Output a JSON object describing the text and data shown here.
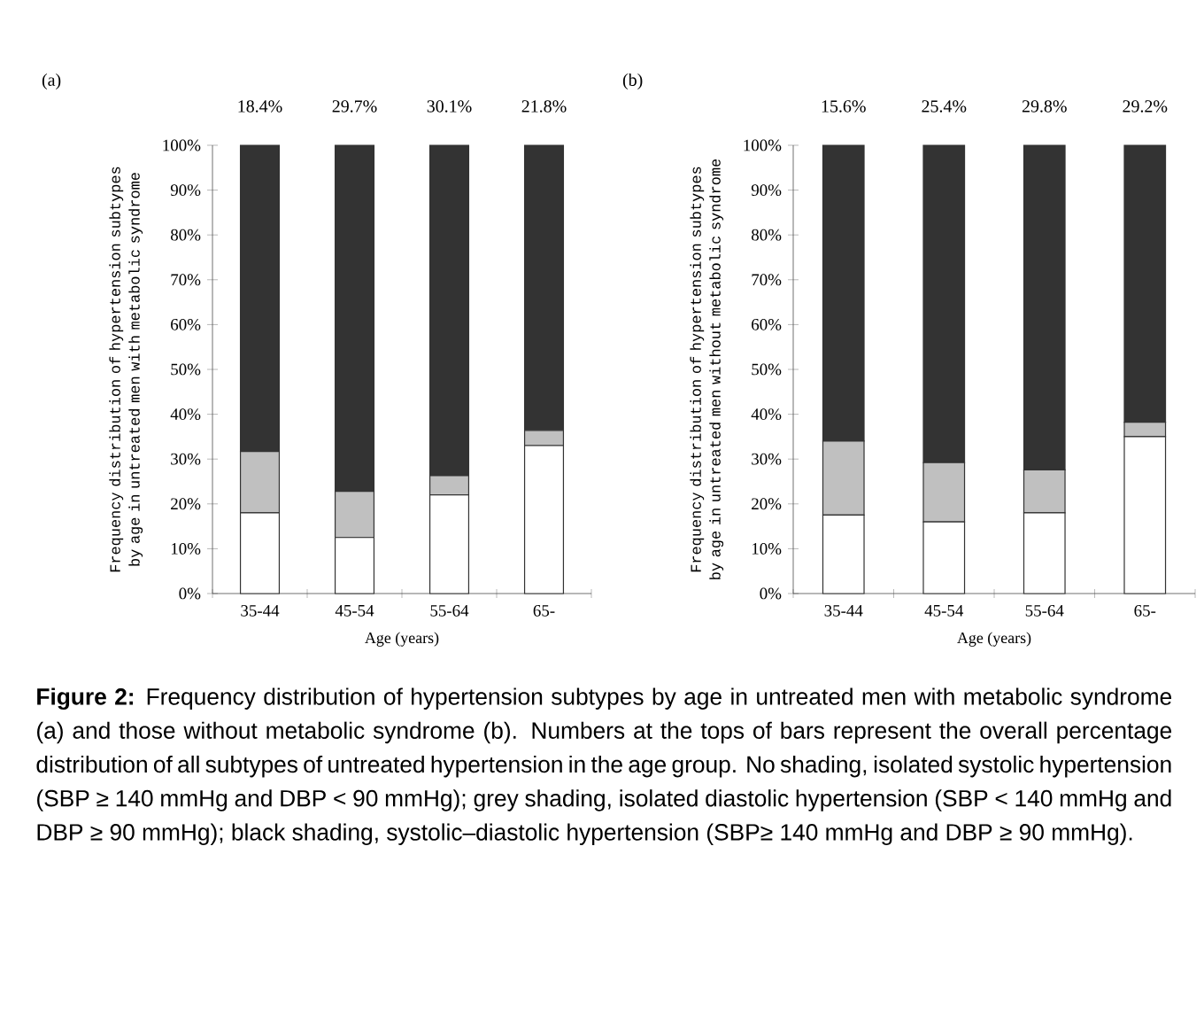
{
  "chart_data": [
    {
      "type": "bar",
      "stacked": true,
      "title": "(a)",
      "xlabel": "Age (years)",
      "ylabel": "Frequency distribution of hypertension subtypes by age in untreated men with metabolic syndrome",
      "categories": [
        "35-44",
        "45-54",
        "55-64",
        "65-"
      ],
      "series": [
        {
          "color": "#ffffff",
          "values": [
            18,
            12.5,
            22,
            33
          ]
        },
        {
          "color": "#c0c0c0",
          "values": [
            13.7,
            10.3,
            4.3,
            3.4
          ]
        },
        {
          "color": "#333333",
          "values": [
            68.3,
            77.2,
            73.7,
            63.6
          ]
        }
      ],
      "ylim": [
        0,
        100
      ],
      "yticks": [
        {
          "value": 0,
          "label": "0%"
        },
        {
          "value": 10,
          "label": "10%"
        },
        {
          "value": 20,
          "label": "20%"
        },
        {
          "value": 30,
          "label": "30%"
        },
        {
          "value": 40,
          "label": "40%"
        },
        {
          "value": 50,
          "label": "50%"
        },
        {
          "value": 60,
          "label": "60%"
        },
        {
          "value": 70,
          "label": "70%"
        },
        {
          "value": 80,
          "label": "80%"
        },
        {
          "value": 90,
          "label": "90%"
        },
        {
          "value": 100,
          "label": "100%"
        }
      ],
      "annotations": [
        "18.4%",
        "29.7%",
        "30.1%",
        "21.8%"
      ]
    },
    {
      "type": "bar",
      "stacked": true,
      "title": "(b)",
      "xlabel": "Age (years)",
      "ylabel": "Frequency distribution of hypertension subtypes by age in untreated men without metabolic syndrome",
      "categories": [
        "35-44",
        "45-54",
        "55-64",
        "65-"
      ],
      "series": [
        {
          "color": "#ffffff",
          "values": [
            17.5,
            16,
            18,
            35
          ]
        },
        {
          "color": "#c0c0c0",
          "values": [
            16.5,
            13.2,
            9.6,
            3.2
          ]
        },
        {
          "color": "#333333",
          "values": [
            66,
            70.8,
            72.4,
            61.8
          ]
        }
      ],
      "ylim": [
        0,
        100
      ],
      "yticks": [
        {
          "value": 0,
          "label": "0%"
        },
        {
          "value": 10,
          "label": "10%"
        },
        {
          "value": 20,
          "label": "20%"
        },
        {
          "value": 30,
          "label": "30%"
        },
        {
          "value": 40,
          "label": "40%"
        },
        {
          "value": 50,
          "label": "50%"
        },
        {
          "value": 60,
          "label": "60%"
        },
        {
          "value": 70,
          "label": "70%"
        },
        {
          "value": 80,
          "label": "80%"
        },
        {
          "value": 90,
          "label": "90%"
        },
        {
          "value": 100,
          "label": "100%"
        }
      ],
      "annotations": [
        "15.6%",
        "25.4%",
        "29.8%",
        "29.2%",
        "**Figure 2:** Frequency distribution of hypertension subtypes by age in untreated men with metabolic syndrome (a) and those without metabolic syndrome (b). Numbers at the tops of bars represent the overall percentage distribution of all subtypes of untreated hypertension in the age group. No shading, isolated systolic hypertension (SBP ≥ 140 mmHg and DBP < 90 mmHg); grey shading, isolated diastolic hypertension (SBP < 140 mmHg and DBP ≥ 90 mmHg); black shading, systolic–diastolic hypertension (SBP≥ 140 mmHg and DBP ≥ 90 mmHg)."
      ]
    }
  ]
}
